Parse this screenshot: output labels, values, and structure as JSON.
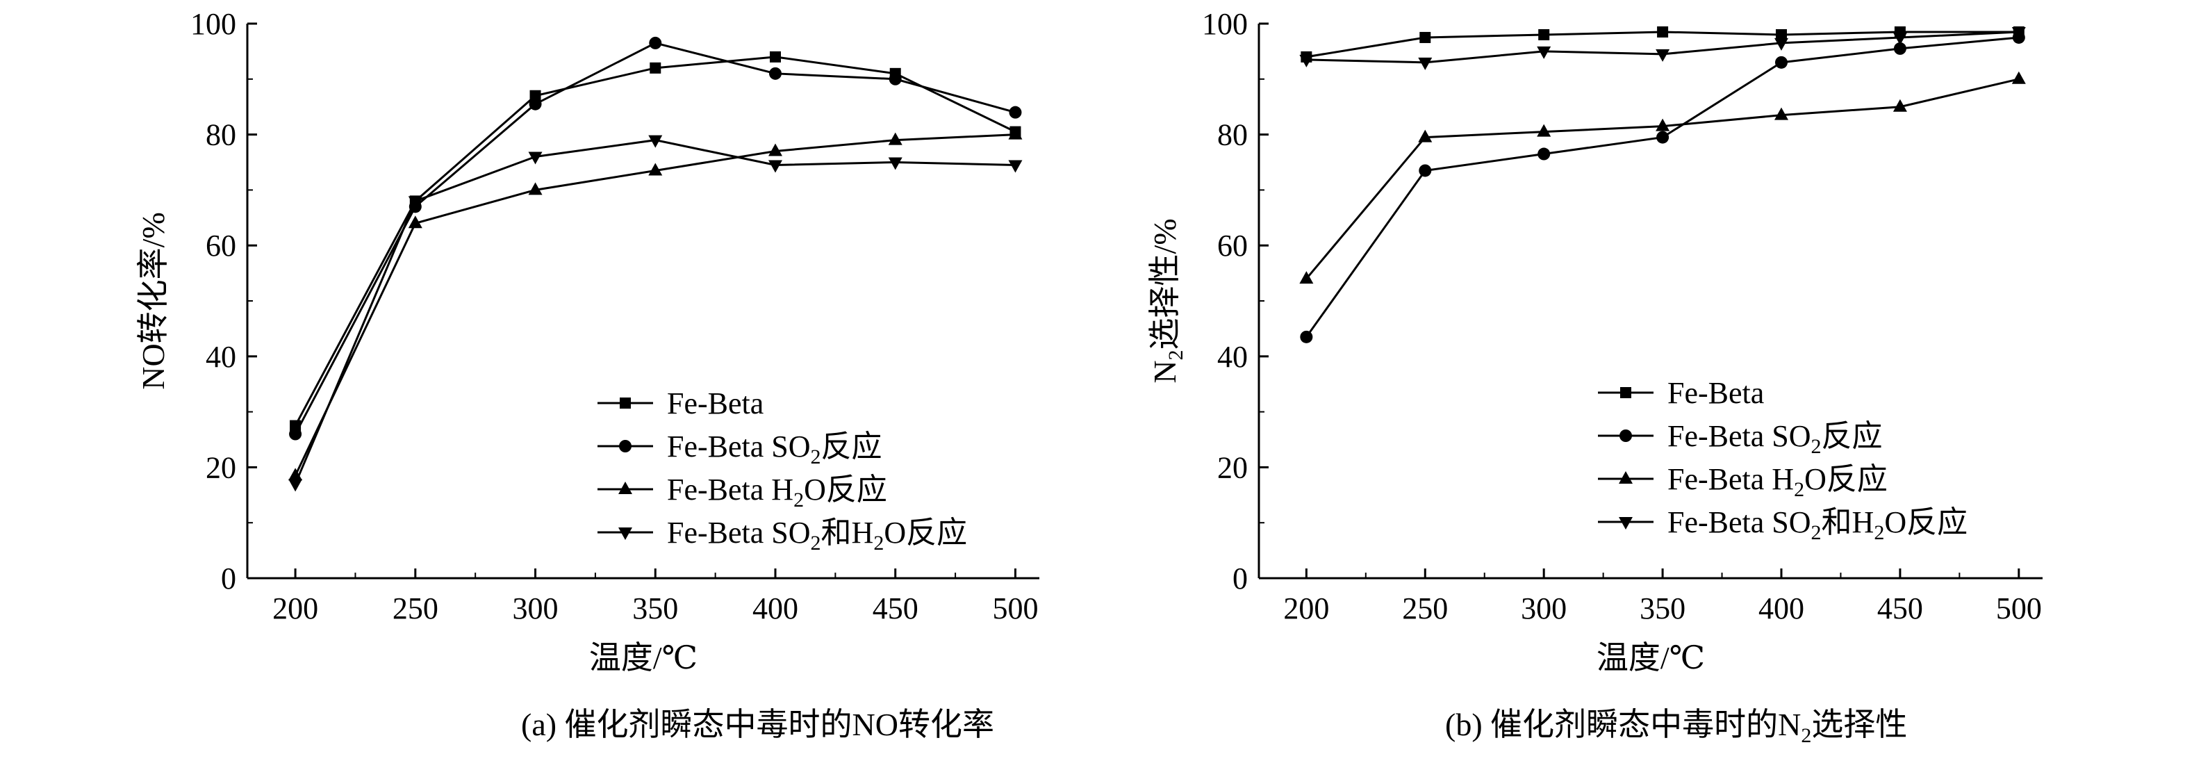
{
  "legend_labels": [
    {
      "pre": "Fe-Beta",
      "parts": []
    },
    {
      "pre": "Fe-Beta SO",
      "parts": [
        {
          "sub": "2"
        },
        {
          "text": "反应"
        }
      ]
    },
    {
      "pre": "Fe-Beta H",
      "parts": [
        {
          "sub": "2"
        },
        {
          "text": "O反应"
        }
      ]
    },
    {
      "pre": "Fe-Beta SO",
      "parts": [
        {
          "sub": "2"
        },
        {
          "text": "和H"
        },
        {
          "sub": "2"
        },
        {
          "text": "O反应"
        }
      ]
    }
  ],
  "chart_data": [
    {
      "id": "a",
      "type": "line",
      "caption": {
        "pre": "(a) 催化剂瞬态中毒时的NO转化率",
        "sub": "",
        "post": ""
      },
      "xlabel": "温度/℃",
      "ylabel": {
        "pre": "NO转化率/%",
        "sub": "",
        "post": ""
      },
      "x": [
        200,
        250,
        300,
        350,
        400,
        450,
        500
      ],
      "xlim": [
        180,
        510
      ],
      "ylim": [
        0,
        100
      ],
      "xticks": [
        200,
        250,
        300,
        350,
        400,
        450,
        500
      ],
      "yticks": [
        0,
        20,
        40,
        60,
        80,
        100
      ],
      "legend_position": "bottom-right",
      "series": [
        {
          "marker": "square",
          "values": [
            27.5,
            68,
            87,
            92,
            94,
            91,
            80.5
          ]
        },
        {
          "marker": "circle",
          "values": [
            26,
            67,
            85.5,
            96.5,
            91,
            90,
            84
          ]
        },
        {
          "marker": "triangle-up",
          "values": [
            18.5,
            64,
            70,
            73.5,
            77,
            79,
            80
          ]
        },
        {
          "marker": "triangle-down",
          "values": [
            17,
            68,
            76,
            79,
            74.5,
            75,
            74.5
          ]
        }
      ]
    },
    {
      "id": "b",
      "type": "line",
      "caption": {
        "pre": "(b) 催化剂瞬态中毒时的N",
        "sub": "2",
        "post": "选择性"
      },
      "xlabel": "温度/℃",
      "ylabel": {
        "pre": "N",
        "sub": "2",
        "post": "选择性/%"
      },
      "x": [
        200,
        250,
        300,
        350,
        400,
        450,
        500
      ],
      "xlim": [
        180,
        510
      ],
      "ylim": [
        0,
        100
      ],
      "xticks": [
        200,
        250,
        300,
        350,
        400,
        450,
        500
      ],
      "yticks": [
        0,
        20,
        40,
        60,
        80,
        100
      ],
      "legend_position": "bottom-right",
      "series": [
        {
          "marker": "square",
          "values": [
            94,
            97.5,
            98,
            98.5,
            98,
            98.5,
            98.5
          ]
        },
        {
          "marker": "circle",
          "values": [
            43.5,
            73.5,
            76.5,
            79.5,
            93,
            95.5,
            97.5
          ]
        },
        {
          "marker": "triangle-up",
          "values": [
            54,
            79.5,
            80.5,
            81.5,
            83.5,
            85,
            90
          ]
        },
        {
          "marker": "triangle-down",
          "values": [
            93.5,
            93,
            95,
            94.5,
            96.5,
            97.5,
            98.5
          ]
        }
      ]
    }
  ]
}
